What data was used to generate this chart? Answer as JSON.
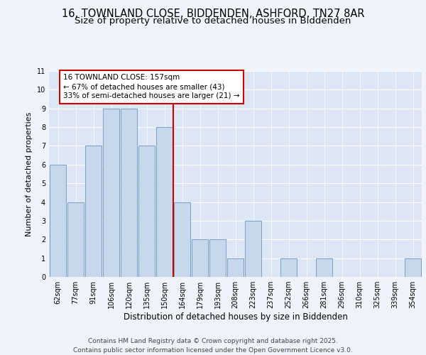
{
  "title_line1": "16, TOWNLAND CLOSE, BIDDENDEN, ASHFORD, TN27 8AR",
  "title_line2": "Size of property relative to detached houses in Biddenden",
  "xlabel": "Distribution of detached houses by size in Biddenden",
  "ylabel": "Number of detached properties",
  "categories": [
    "62sqm",
    "77sqm",
    "91sqm",
    "106sqm",
    "120sqm",
    "135sqm",
    "150sqm",
    "164sqm",
    "179sqm",
    "193sqm",
    "208sqm",
    "223sqm",
    "237sqm",
    "252sqm",
    "266sqm",
    "281sqm",
    "296sqm",
    "310sqm",
    "325sqm",
    "339sqm",
    "354sqm"
  ],
  "values": [
    6,
    4,
    7,
    9,
    9,
    7,
    8,
    4,
    2,
    2,
    1,
    3,
    0,
    1,
    0,
    1,
    0,
    0,
    0,
    0,
    1
  ],
  "bar_color": "#c8d8ec",
  "bar_edge_color": "#7aa0c4",
  "background_color": "#dce6f5",
  "grid_color": "#ffffff",
  "fig_color": "#f0f4fa",
  "vline_x": 6.5,
  "vline_color": "#cc0000",
  "annotation_text": "16 TOWNLAND CLOSE: 157sqm\n← 67% of detached houses are smaller (43)\n33% of semi-detached houses are larger (21) →",
  "annotation_box_color": "#ffffff",
  "annotation_box_edge": "#cc0000",
  "ylim_max": 11,
  "footer": "Contains HM Land Registry data © Crown copyright and database right 2025.\nContains public sector information licensed under the Open Government Licence v3.0.",
  "title_fontsize": 10.5,
  "subtitle_fontsize": 9.5,
  "xlabel_fontsize": 8.5,
  "ylabel_fontsize": 8,
  "tick_fontsize": 7,
  "annotation_fontsize": 7.5,
  "footer_fontsize": 6.5
}
